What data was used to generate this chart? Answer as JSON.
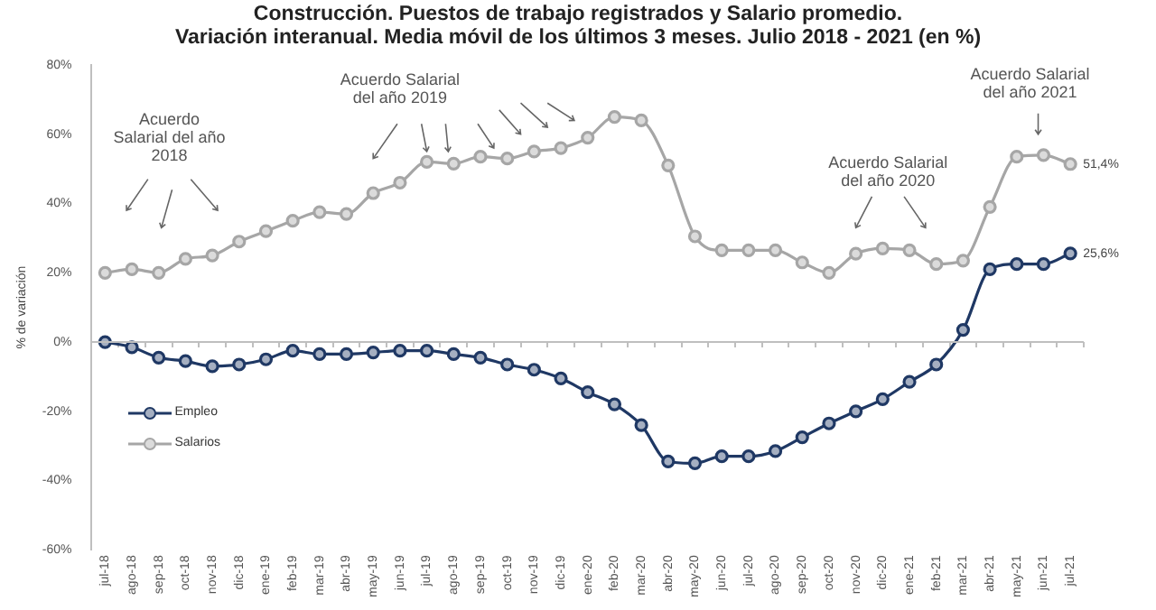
{
  "chart_data": {
    "type": "line",
    "title": "Construcción. Puestos de trabajo registrados y Salario promedio.",
    "subtitle": "Variación interanual. Media móvil de los últimos 3 meses. Julio 2018 - 2021 (en %)",
    "ylabel": "% de variación",
    "categories": [
      "jul-18",
      "ago-18",
      "sep-18",
      "oct-18",
      "nov-18",
      "dic-18",
      "ene-19",
      "feb-19",
      "mar-19",
      "abr-19",
      "may-19",
      "jun-19",
      "jul-19",
      "ago-19",
      "sep-19",
      "oct-19",
      "nov-19",
      "dic-19",
      "ene-20",
      "feb-20",
      "mar-20",
      "abr-20",
      "may-20",
      "jun-20",
      "jul-20",
      "ago-20",
      "sep-20",
      "oct-20",
      "nov-20",
      "dic-20",
      "ene-21",
      "feb-21",
      "mar-21",
      "abr-21",
      "may-21",
      "jun-21",
      "jul-21"
    ],
    "series": [
      {
        "name": "Empleo",
        "color": "#1f3864",
        "values": [
          0,
          -1.5,
          -4.5,
          -5.5,
          -7,
          -6.5,
          -5,
          -2.5,
          -3.5,
          -3.5,
          -3,
          -2.5,
          -2.5,
          -3.5,
          -4.5,
          -6.5,
          -8,
          -10.5,
          -14.5,
          -18,
          -24,
          -34.5,
          -35,
          -33,
          -33,
          -31.5,
          -27.5,
          -23.5,
          -20,
          -16.5,
          -11.5,
          -6.5,
          3.5,
          21,
          22.5,
          22.5,
          25.6
        ],
        "value_labels": [
          null,
          null,
          null,
          null,
          null,
          null,
          null,
          null,
          null,
          null,
          null,
          null,
          null,
          null,
          null,
          null,
          null,
          null,
          null,
          null,
          null,
          null,
          null,
          null,
          null,
          null,
          null,
          null,
          null,
          null,
          null,
          null,
          null,
          null,
          null,
          null,
          "25,6%"
        ]
      },
      {
        "name": "Salarios",
        "color": "#a6a6a6",
        "values": [
          20,
          21,
          20,
          24,
          25,
          29,
          32,
          35,
          37.5,
          37,
          43,
          46,
          52,
          51.5,
          53.5,
          53,
          55,
          56,
          59,
          65,
          64,
          51,
          30.5,
          26.5,
          26.5,
          26.5,
          23,
          20,
          25.5,
          27,
          26.5,
          22.5,
          23.5,
          39,
          53.5,
          54,
          51.4
        ],
        "value_labels": [
          null,
          null,
          null,
          null,
          null,
          null,
          null,
          null,
          null,
          null,
          null,
          null,
          null,
          null,
          null,
          null,
          null,
          null,
          null,
          null,
          null,
          null,
          null,
          null,
          null,
          null,
          null,
          null,
          null,
          null,
          null,
          null,
          null,
          null,
          null,
          null,
          "51,4%"
        ]
      }
    ],
    "ylim": [
      -60,
      80
    ],
    "yticks": [
      {
        "value": -60,
        "label": "-60%"
      },
      {
        "value": -40,
        "label": "-40%"
      },
      {
        "value": -20,
        "label": "-20%"
      },
      {
        "value": 0,
        "label": "0%"
      },
      {
        "value": 20,
        "label": "20%"
      },
      {
        "value": 40,
        "label": "40%"
      },
      {
        "value": 60,
        "label": "60%"
      },
      {
        "value": 80,
        "label": "80%"
      }
    ],
    "annotations": [
      "Acuerdo Salarial del año 2018",
      "Acuerdo Salarial del año 2019",
      "Acuerdo Salarial del año 2020",
      "Acuerdo Salarial del año 2021"
    ],
    "ref_lines": [
      {
        "axis": "y",
        "value": 0,
        "color": "#bfbfbf"
      }
    ],
    "legend": "bottom left",
    "marker": "circle",
    "line_style": "solid",
    "grid": false
  }
}
